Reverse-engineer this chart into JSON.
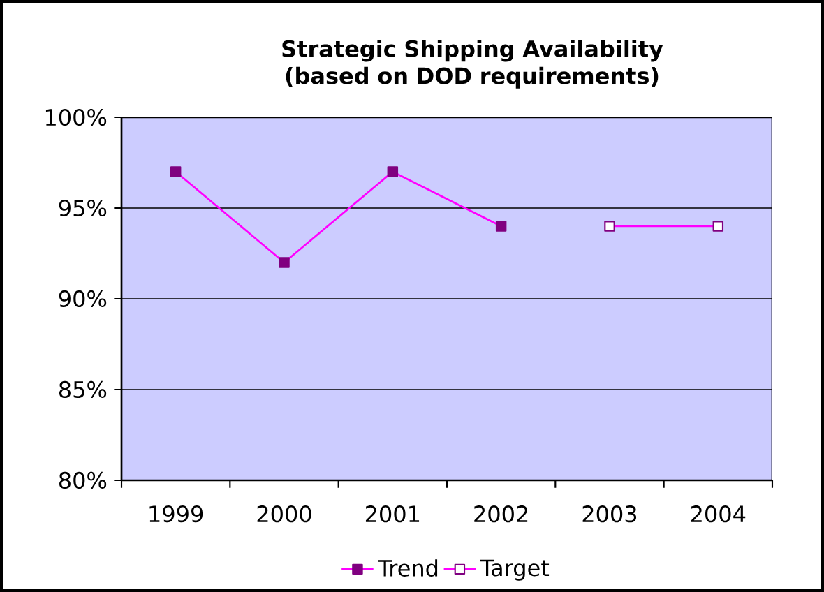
{
  "chart_data": {
    "type": "line",
    "title": "Strategic Shipping Availability (based on DOD requirements)",
    "categories": [
      "1999",
      "2000",
      "2001",
      "2002",
      "2003",
      "2004"
    ],
    "series": [
      {
        "name": "Trend",
        "color": "#ff00ff",
        "values": [
          97,
          92,
          97,
          94,
          null,
          null
        ]
      },
      {
        "name": "Target",
        "color": "#ff00ff",
        "values": [
          null,
          null,
          null,
          null,
          94,
          94
        ]
      }
    ],
    "ylim": [
      80,
      100
    ],
    "yticks": [
      {
        "value": 80,
        "label": "80%"
      },
      {
        "value": 85,
        "label": "85%"
      },
      {
        "value": 90,
        "label": "90%"
      },
      {
        "value": 95,
        "label": "95%"
      },
      {
        "value": 100,
        "label": "100%"
      }
    ],
    "grid": "y",
    "legend": "bottom",
    "marker": "square",
    "line_style": "solid"
  }
}
